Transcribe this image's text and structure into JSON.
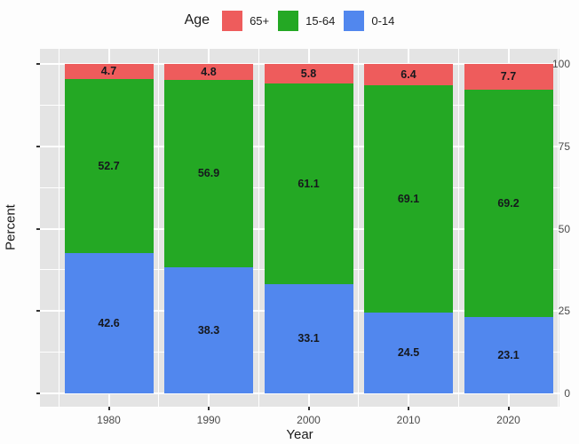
{
  "legend": {
    "title": "Age",
    "items": [
      {
        "label": "65+",
        "color": "#ee5c5c"
      },
      {
        "label": "15-64",
        "color": "#24a824"
      },
      {
        "label": "0-14",
        "color": "#5187ee"
      }
    ]
  },
  "axes": {
    "x_label": "Year",
    "y_label": "Percent"
  },
  "chart_data": {
    "type": "bar",
    "stacked": true,
    "categories": [
      "1980",
      "1990",
      "2000",
      "2010",
      "2020"
    ],
    "series": [
      {
        "name": "0-14",
        "color": "#5187ee",
        "values": [
          42.6,
          38.3,
          33.1,
          24.5,
          23.1
        ]
      },
      {
        "name": "15-64",
        "color": "#24a824",
        "values": [
          52.7,
          56.9,
          61.1,
          69.1,
          69.2
        ]
      },
      {
        "name": "65+",
        "color": "#ee5c5c",
        "values": [
          4.7,
          4.8,
          5.8,
          6.4,
          7.7
        ]
      }
    ],
    "xlabel": "Year",
    "ylabel": "Percent",
    "yticks": [
      0,
      25,
      50,
      75,
      100
    ],
    "yticks_minor": [
      12.5,
      37.5,
      62.5,
      87.5
    ],
    "ylim": [
      0,
      100
    ],
    "legend_title": "Age",
    "legend_position": "top",
    "legend_order": [
      "65+",
      "15-64",
      "0-14"
    ],
    "grid": true,
    "value_labels": true
  },
  "colors": {
    "panel_bg": "#e4e4e4",
    "grid": "#ffffff",
    "axis_text": "#4b4b4b",
    "title_text": "#1a1a1a",
    "value_text": "#16181d",
    "page_bg": "#ffffff"
  }
}
